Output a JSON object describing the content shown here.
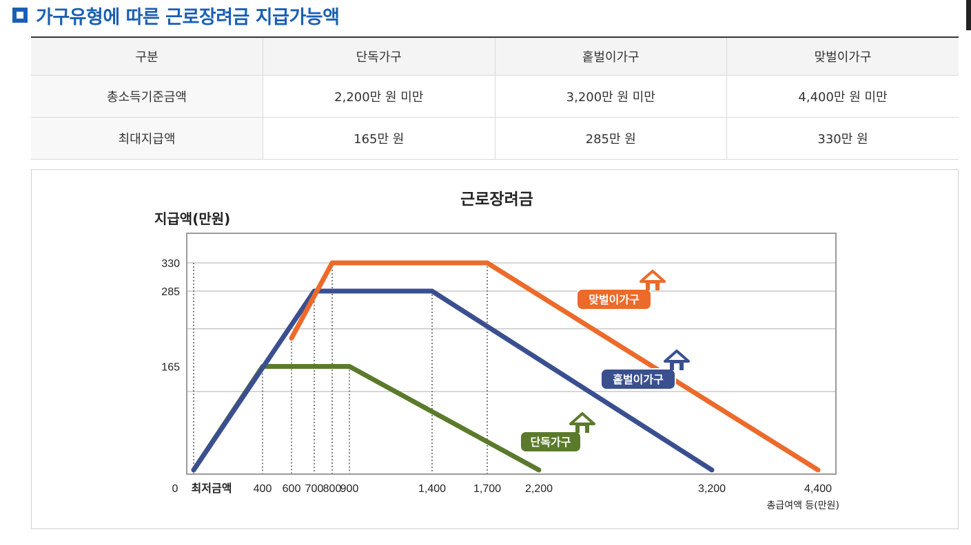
{
  "heading": "가구유형에 따른 근로장려금 지급가능액",
  "table": {
    "headers": [
      "구분",
      "단독가구",
      "홑벌이가구",
      "맞벌이가구"
    ],
    "rows": [
      [
        "총소득기준금액",
        "2,200만 원 미만",
        "3,200만 원 미만",
        "4,400만 원 미만"
      ],
      [
        "최대지급액",
        "165만 원",
        "285만 원",
        "330만 원"
      ]
    ]
  },
  "chart_data": {
    "type": "line",
    "title": "근로장려금",
    "ylabel": "지급액(만원)",
    "xlabel": "총급여액 등(만원)",
    "x_ticks": [
      "0",
      "최저금액",
      "400",
      "600",
      "700",
      "800",
      "900",
      "1,400",
      "1,700",
      "2,200",
      "3,200",
      "4,400"
    ],
    "x_tick_values": [
      0,
      250,
      400,
      600,
      700,
      800,
      900,
      1400,
      1700,
      2200,
      3200,
      4400
    ],
    "y_ticks": [
      "330",
      "285",
      "165"
    ],
    "y_tick_values": [
      330,
      285,
      165
    ],
    "ylim": [
      0,
      360
    ],
    "grid": true,
    "series": [
      {
        "name": "단독가구",
        "color": "#5b7a2c",
        "icon": "house-icon",
        "points": [
          [
            0,
            0
          ],
          [
            400,
            165
          ],
          [
            900,
            165
          ],
          [
            2200,
            0
          ]
        ]
      },
      {
        "name": "홑벌이가구",
        "color": "#3a4f8f",
        "icon": "house-icon",
        "points": [
          [
            0,
            0
          ],
          [
            700,
            285
          ],
          [
            1400,
            285
          ],
          [
            3200,
            0
          ]
        ]
      },
      {
        "name": "맞벌이가구",
        "color": "#ec6a2a",
        "icon": "house-icon",
        "points": [
          [
            600,
            210
          ],
          [
            800,
            330
          ],
          [
            1700,
            330
          ],
          [
            4400,
            0
          ]
        ]
      }
    ]
  }
}
